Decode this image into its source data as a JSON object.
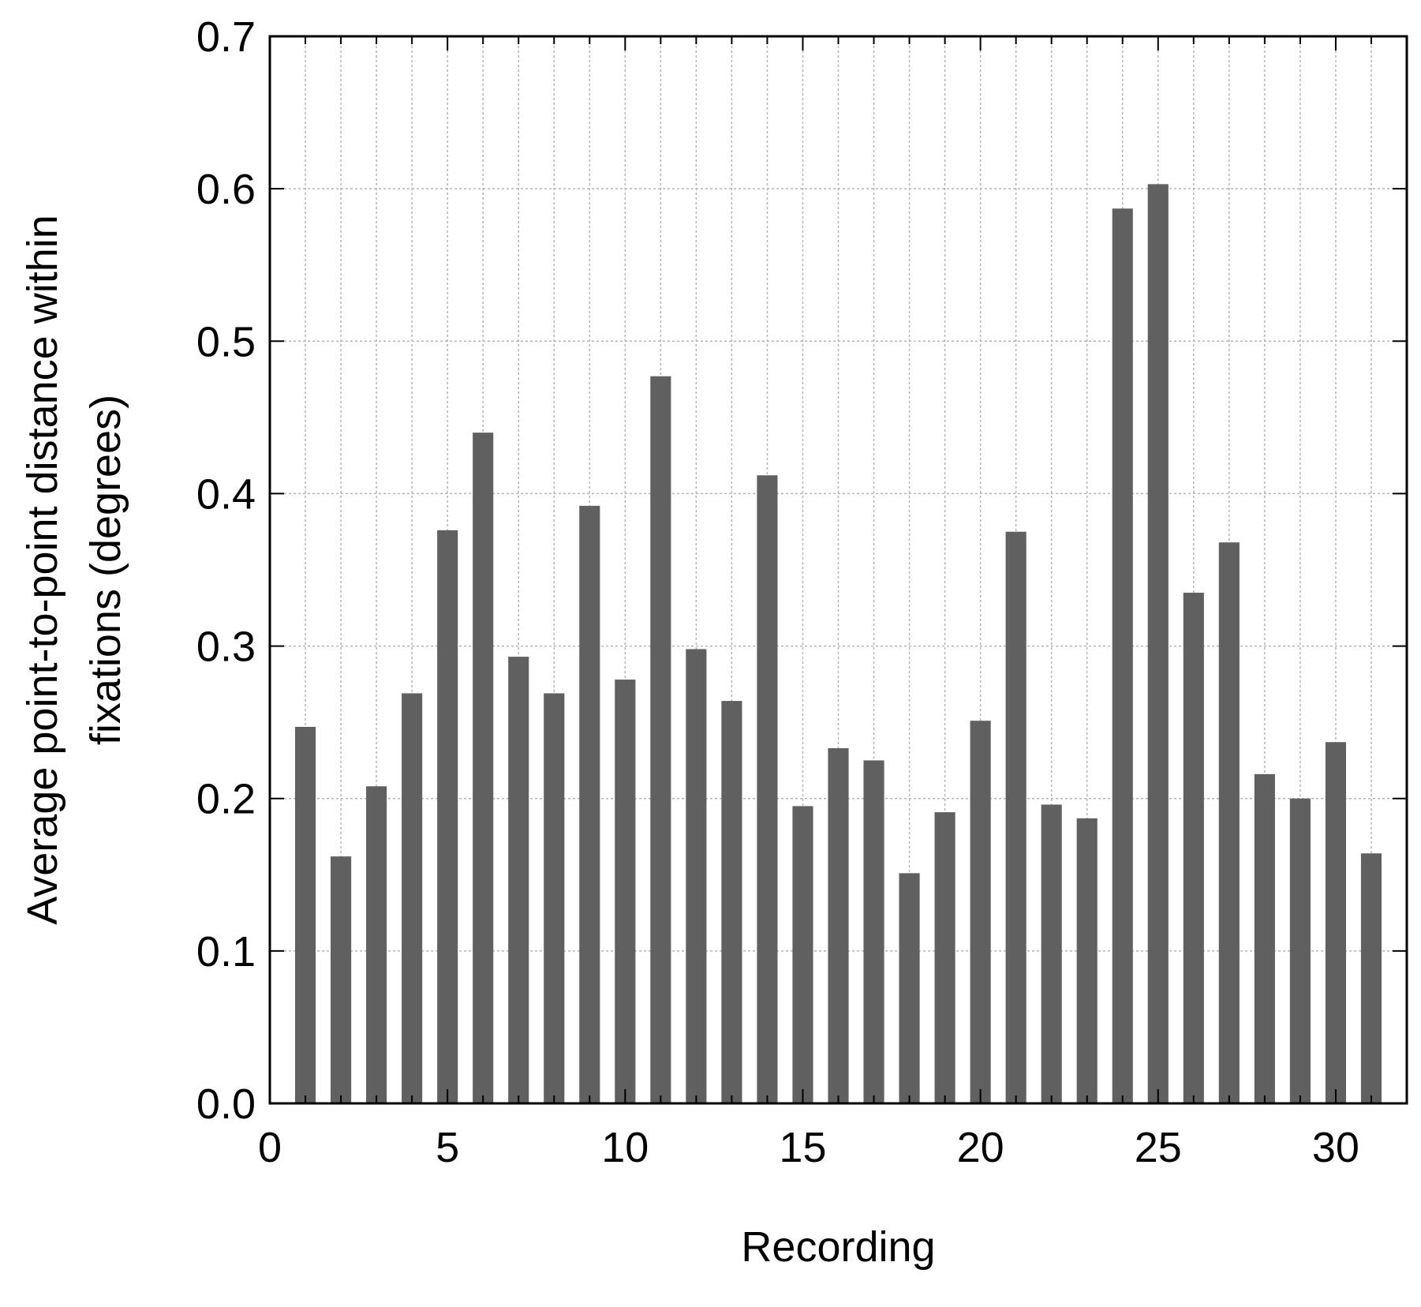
{
  "chart_data": {
    "type": "bar",
    "title": "",
    "xlabel": "Recording",
    "ylabel_lines": [
      "Average point-to-point distance within",
      "fixations (degrees)"
    ],
    "xlim": [
      0,
      32
    ],
    "ylim": [
      0,
      0.7
    ],
    "x_ticks": [
      0,
      5,
      10,
      15,
      20,
      25,
      30
    ],
    "x_tick_labels": [
      "0",
      "5",
      "10",
      "15",
      "20",
      "25",
      "30"
    ],
    "y_ticks": [
      0,
      0.1,
      0.2,
      0.3,
      0.4,
      0.5,
      0.6,
      0.7
    ],
    "y_tick_labels": [
      "0.0",
      "0.1",
      "0.2",
      "0.3",
      "0.4",
      "0.5",
      "0.6",
      "0.7"
    ],
    "grid": true,
    "bar_color": "#606060",
    "series": [
      {
        "x": [
          1,
          2,
          3,
          4,
          5,
          6,
          7,
          8,
          9,
          10,
          11,
          12,
          13,
          14,
          15,
          16,
          17,
          18,
          19,
          20,
          21,
          22,
          23,
          24,
          25,
          26,
          27,
          28,
          29,
          30,
          31
        ],
        "values": [
          0.247,
          0.162,
          0.208,
          0.269,
          0.376,
          0.44,
          0.293,
          0.269,
          0.392,
          0.278,
          0.477,
          0.298,
          0.264,
          0.412,
          0.195,
          0.233,
          0.225,
          0.151,
          0.191,
          0.251,
          0.375,
          0.196,
          0.187,
          0.587,
          0.603,
          0.335,
          0.368,
          0.216,
          0.2,
          0.237,
          0.164
        ]
      }
    ]
  }
}
